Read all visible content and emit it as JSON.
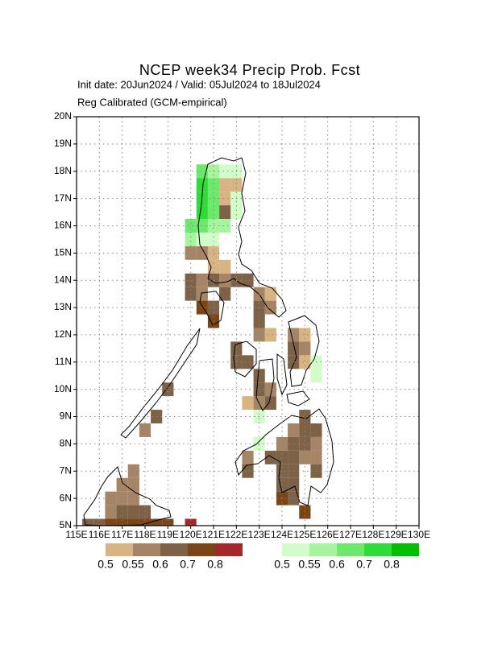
{
  "map": {
    "title": "NCEP week34 Precip Prob. Fcst",
    "subtitle": "Init date: 20Jun2024 / Valid: 05Jul2024 to 18Jul2024",
    "method": "Reg Calibrated (GCM-empirical)",
    "xlim": [
      115,
      130
    ],
    "ylim": [
      5,
      20
    ],
    "xticks": [
      {
        "value": 115,
        "label": "115E"
      },
      {
        "value": 116,
        "label": "116E"
      },
      {
        "value": 117,
        "label": "117E"
      },
      {
        "value": 118,
        "label": "118E"
      },
      {
        "value": 119,
        "label": "119E"
      },
      {
        "value": 120,
        "label": "120E"
      },
      {
        "value": 121,
        "label": "121E"
      },
      {
        "value": 122,
        "label": "122E"
      },
      {
        "value": 123,
        "label": "123E"
      },
      {
        "value": 124,
        "label": "124E"
      },
      {
        "value": 125,
        "label": "125E"
      },
      {
        "value": 126,
        "label": "126E"
      },
      {
        "value": 127,
        "label": "127E"
      },
      {
        "value": 128,
        "label": "128E"
      },
      {
        "value": 129,
        "label": "129E"
      },
      {
        "value": 130,
        "label": "130E"
      }
    ],
    "yticks": [
      {
        "value": 5,
        "label": "5N"
      },
      {
        "value": 6,
        "label": "6N"
      },
      {
        "value": 7,
        "label": "7N"
      },
      {
        "value": 8,
        "label": "8N"
      },
      {
        "value": 9,
        "label": "9N"
      },
      {
        "value": 10,
        "label": "10N"
      },
      {
        "value": 11,
        "label": "11N"
      },
      {
        "value": 12,
        "label": "12N"
      },
      {
        "value": 13,
        "label": "13N"
      },
      {
        "value": 14,
        "label": "14N"
      },
      {
        "value": 15,
        "label": "15N"
      },
      {
        "value": 16,
        "label": "16N"
      },
      {
        "value": 17,
        "label": "17N"
      },
      {
        "value": 18,
        "label": "18N"
      },
      {
        "value": 19,
        "label": "19N"
      },
      {
        "value": 20,
        "label": "20N"
      }
    ],
    "legend": {
      "dry": [
        {
          "label": "0.5",
          "color": "#d8b483",
          "cells": [
            [
              121.25,
              17.25
            ],
            [
              121.75,
              17.25
            ],
            [
              121.25,
              16.75
            ],
            [
              120.75,
              14.75
            ],
            [
              120.75,
              14.25
            ],
            [
              121.25,
              14.25
            ],
            [
              123.25,
              13.25
            ],
            [
              123.25,
              11.75
            ],
            [
              124.75,
              11.75
            ],
            [
              124.75,
              10.75
            ],
            [
              122.25,
              9.25
            ]
          ]
        },
        {
          "label": "0.55",
          "color": "#a68466",
          "cells": [
            [
              119.75,
              14.75
            ],
            [
              120.25,
              14.75
            ],
            [
              120.25,
              13.75
            ],
            [
              121.25,
              13.75
            ],
            [
              120.25,
              13.25
            ],
            [
              122.75,
              13.25
            ],
            [
              123.25,
              12.75
            ],
            [
              122.75,
              11.75
            ],
            [
              124.25,
              11.75
            ],
            [
              124.75,
              11.25
            ],
            [
              123.25,
              9.75
            ],
            [
              122.75,
              9.25
            ],
            [
              117.75,
              8.25
            ],
            [
              124.25,
              8.25
            ],
            [
              123.75,
              7.75
            ],
            [
              125.25,
              7.75
            ],
            [
              122.25,
              7.25
            ],
            [
              124.75,
              7.25
            ],
            [
              125.25,
              7.25
            ],
            [
              117.25,
              6.75
            ],
            [
              116.75,
              6.25
            ],
            [
              117.25,
              6.25
            ],
            [
              116.25,
              5.75
            ],
            [
              116.75,
              5.75
            ],
            [
              117.25,
              5.75
            ],
            [
              116.25,
              5.25
            ]
          ]
        },
        {
          "label": "0.6",
          "color": "#7e6248",
          "cells": [
            [
              121.25,
              16.25
            ],
            [
              119.75,
              13.75
            ],
            [
              120.75,
              13.75
            ],
            [
              121.75,
              13.75
            ],
            [
              122.25,
              13.75
            ],
            [
              119.75,
              13.25
            ],
            [
              121.25,
              13.25
            ],
            [
              120.75,
              12.75
            ],
            [
              122.75,
              12.75
            ],
            [
              122.75,
              12.25
            ],
            [
              121.75,
              11.25
            ],
            [
              124.25,
              11.25
            ],
            [
              121.75,
              10.75
            ],
            [
              122.25,
              10.75
            ],
            [
              124.25,
              10.75
            ],
            [
              122.75,
              10.25
            ],
            [
              118.75,
              9.75
            ],
            [
              122.75,
              9.75
            ],
            [
              123.25,
              9.25
            ],
            [
              118.25,
              8.75
            ],
            [
              124.75,
              8.75
            ],
            [
              124.75,
              8.25
            ],
            [
              125.25,
              8.25
            ],
            [
              124.25,
              7.75
            ],
            [
              124.75,
              7.75
            ],
            [
              123.25,
              7.25
            ],
            [
              123.75,
              7.25
            ],
            [
              124.25,
              7.25
            ],
            [
              122.25,
              6.75
            ],
            [
              123.75,
              6.75
            ],
            [
              124.25,
              6.75
            ],
            [
              125.25,
              6.75
            ],
            [
              123.75,
              6.25
            ],
            [
              124.25,
              6.25
            ],
            [
              124.25,
              5.75
            ],
            [
              116.75,
              5.25
            ],
            [
              117.25,
              5.25
            ],
            [
              117.75,
              5.25
            ],
            [
              115.25,
              4.75
            ],
            [
              115.75,
              4.75
            ]
          ]
        },
        {
          "label": "0.7",
          "color": "#7a4616",
          "cells": [
            [
              120.25,
              12.75
            ],
            [
              120.75,
              12.25
            ],
            [
              123.75,
              5.75
            ],
            [
              124.75,
              5.25
            ],
            [
              116.25,
              4.75
            ],
            [
              116.75,
              4.75
            ],
            [
              117.25,
              4.75
            ],
            [
              117.75,
              4.75
            ],
            [
              118.25,
              4.75
            ],
            [
              118.75,
              4.75
            ]
          ]
        },
        {
          "label": "0.8",
          "color": "#a3282c",
          "cells": [
            [
              119.75,
              4.75
            ]
          ]
        }
      ],
      "wet": [
        {
          "label": "0.5",
          "color": "#d2fdca",
          "cells": [
            [
              121.25,
              17.75
            ],
            [
              121.75,
              17.75
            ],
            [
              121.75,
              16.75
            ],
            [
              121.75,
              16.25
            ],
            [
              120.25,
              15.25
            ],
            [
              120.75,
              15.25
            ],
            [
              125.25,
              10.75
            ],
            [
              125.25,
              10.25
            ],
            [
              122.75,
              8.75
            ],
            [
              122.75,
              7.75
            ]
          ]
        },
        {
          "label": "0.55",
          "color": "#a6f59e",
          "cells": [
            [
              120.75,
              17.75
            ],
            [
              120.75,
              15.75
            ],
            [
              121.25,
              15.75
            ],
            [
              119.75,
              15.25
            ]
          ]
        },
        {
          "label": "0.6",
          "color": "#6ce86a",
          "cells": [
            [
              120.25,
              17.75
            ],
            [
              120.75,
              17.25
            ],
            [
              120.75,
              16.75
            ],
            [
              120.75,
              16.25
            ],
            [
              119.75,
              15.75
            ],
            [
              120.25,
              15.75
            ]
          ]
        },
        {
          "label": "0.7",
          "color": "#2edb38",
          "cells": [
            [
              120.25,
              17.25
            ],
            [
              120.25,
              16.75
            ],
            [
              120.25,
              16.25
            ]
          ]
        },
        {
          "label": "0.8",
          "color": "#00bf00",
          "cells": []
        }
      ]
    }
  }
}
